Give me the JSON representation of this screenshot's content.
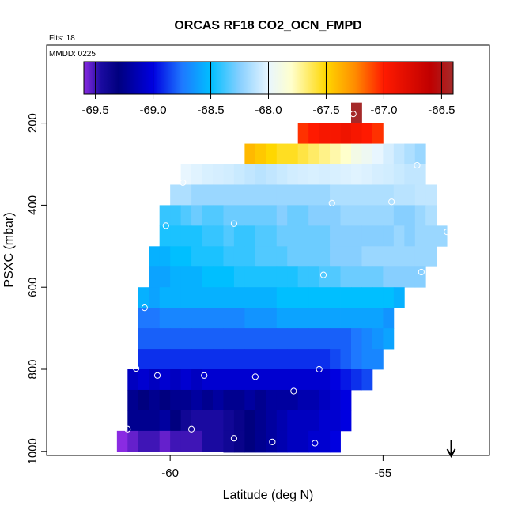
{
  "chart_data": {
    "type": "heatmap",
    "title": "ORCAS RF18 CO2_OCN_FMPD",
    "flights_note": "Flts: 18",
    "date_note": "MMDD: 0225",
    "xlabel": "Latitude (deg N)",
    "ylabel": "PSXC (mbar)",
    "xlim": [
      -62.9,
      -52.5
    ],
    "ylim": [
      1010,
      10
    ],
    "x_ticks": [
      -60,
      -55
    ],
    "x_tick_labels": [
      "-60",
      "-55"
    ],
    "y_ticks": [
      200,
      400,
      600,
      800,
      1000
    ],
    "y_tick_labels": [
      "200",
      "400",
      "600",
      "800",
      "1000"
    ],
    "colorbar": {
      "range": [
        -69.6,
        -66.4
      ],
      "ticks": [
        -69.5,
        -69.0,
        -68.5,
        -68.0,
        -67.5,
        -67.0,
        -66.5
      ],
      "tick_labels": [
        "-69.5",
        "-69.0",
        "-68.5",
        "-68.0",
        "-67.5",
        "-67.0",
        "-66.5"
      ],
      "stops": [
        {
          "v": -69.6,
          "c": "#8a2be2"
        },
        {
          "v": -69.45,
          "c": "#1a0aa0"
        },
        {
          "v": -69.3,
          "c": "#00007f"
        },
        {
          "v": -69.0,
          "c": "#0000e0"
        },
        {
          "v": -68.75,
          "c": "#1e78ff"
        },
        {
          "v": -68.5,
          "c": "#00bfff"
        },
        {
          "v": -68.25,
          "c": "#87cfff"
        },
        {
          "v": -68.0,
          "c": "#e8f6ff"
        },
        {
          "v": -67.8,
          "c": "#ffffcc"
        },
        {
          "v": -67.5,
          "c": "#ffd700"
        },
        {
          "v": -67.25,
          "c": "#ff8c00"
        },
        {
          "v": -67.0,
          "c": "#ff1a00"
        },
        {
          "v": -66.6,
          "c": "#c00000"
        },
        {
          "v": -66.4,
          "c": "#a52a2a"
        }
      ]
    },
    "pressure_bin_mbar": 50,
    "cells": [
      {
        "p": 175,
        "x0": -55.75,
        "x1": -55.5,
        "values": [
          -66.4
        ]
      },
      {
        "p": 225,
        "x0": -57.0,
        "x1": -55.0,
        "values": [
          -67.05,
          -67.0,
          -66.95,
          -66.95,
          -66.9,
          -66.95,
          -67.0,
          -67.05
        ]
      },
      {
        "p": 275,
        "x0": -58.25,
        "x1": -54.0,
        "values": [
          -67.4,
          -67.45,
          -67.5,
          -67.55,
          -67.55,
          -67.6,
          -67.65,
          -67.7,
          -67.75,
          -67.8,
          -67.9,
          -67.95,
          -68.0,
          -68.05,
          -68.1,
          -68.15,
          -68.2
        ]
      },
      {
        "p": 325,
        "x0": -59.75,
        "x1": -54.0,
        "values": [
          -68.0,
          -68.02,
          -68.04,
          -68.05,
          -68.06,
          -68.08,
          -68.1,
          -68.12,
          -68.1,
          -68.08,
          -68.06,
          -68.05,
          -68.04,
          -68.05,
          -68.04,
          -68.03,
          -68.02,
          -68.03,
          -68.05,
          -68.06,
          -68.08,
          -68.1,
          -68.1
        ]
      },
      {
        "p": 375,
        "x0": -60.0,
        "x1": -53.75,
        "values": [
          -68.15,
          -68.15,
          -68.2,
          -68.2,
          -68.2,
          -68.2,
          -68.2,
          -68.2,
          -68.2,
          -68.2,
          -68.2,
          -68.2,
          -68.2,
          -68.2,
          -68.2,
          -68.15,
          -68.15,
          -68.15,
          -68.15,
          -68.15,
          -68.15,
          -68.12,
          -68.12,
          -68.1,
          -68.1
        ]
      },
      {
        "p": 425,
        "x0": -60.25,
        "x1": -53.75,
        "values": [
          -68.4,
          -68.4,
          -68.35,
          -68.3,
          -68.35,
          -68.35,
          -68.3,
          -68.3,
          -68.3,
          -68.3,
          -68.3,
          -68.25,
          -68.3,
          -68.3,
          -68.25,
          -68.25,
          -68.25,
          -68.2,
          -68.2,
          -68.2,
          -68.2,
          -68.2,
          -68.25,
          -68.25,
          -68.2,
          -68.15
        ]
      },
      {
        "p": 475,
        "x0": -60.25,
        "x1": -53.5,
        "values": [
          -68.45,
          -68.45,
          -68.45,
          -68.45,
          -68.4,
          -68.4,
          -68.35,
          -68.4,
          -68.4,
          -68.35,
          -68.35,
          -68.3,
          -68.3,
          -68.3,
          -68.3,
          -68.3,
          -68.25,
          -68.25,
          -68.25,
          -68.25,
          -68.25,
          -68.25,
          -68.2,
          -68.25,
          -68.2,
          -68.2,
          -68.2
        ]
      },
      {
        "p": 525,
        "x0": -60.5,
        "x1": -53.75,
        "values": [
          -68.55,
          -68.55,
          -68.5,
          -68.5,
          -68.45,
          -68.45,
          -68.45,
          -68.4,
          -68.4,
          -68.4,
          -68.35,
          -68.35,
          -68.35,
          -68.3,
          -68.3,
          -68.3,
          -68.3,
          -68.25,
          -68.25,
          -68.25,
          -68.2,
          -68.2,
          -68.2,
          -68.2,
          -68.2,
          -68.2,
          -68.2
        ]
      },
      {
        "p": 575,
        "x0": -60.5,
        "x1": -54.0,
        "values": [
          -68.6,
          -68.6,
          -68.55,
          -68.55,
          -68.55,
          -68.5,
          -68.5,
          -68.5,
          -68.45,
          -68.45,
          -68.45,
          -68.45,
          -68.45,
          -68.45,
          -68.4,
          -68.4,
          -68.35,
          -68.35,
          -68.3,
          -68.3,
          -68.3,
          -68.3,
          -68.25,
          -68.25,
          -68.25,
          -68.25
        ]
      },
      {
        "p": 625,
        "x0": -60.75,
        "x1": -54.5,
        "values": [
          -68.55,
          -68.6,
          -68.55,
          -68.55,
          -68.55,
          -68.55,
          -68.55,
          -68.55,
          -68.55,
          -68.55,
          -68.55,
          -68.55,
          -68.55,
          -68.5,
          -68.5,
          -68.5,
          -68.5,
          -68.5,
          -68.5,
          -68.5,
          -68.5,
          -68.5,
          -68.5,
          -68.5,
          -68.55
        ]
      },
      {
        "p": 675,
        "x0": -60.75,
        "x1": -54.75,
        "values": [
          -68.75,
          -68.75,
          -68.7,
          -68.7,
          -68.7,
          -68.7,
          -68.7,
          -68.7,
          -68.7,
          -68.7,
          -68.65,
          -68.65,
          -68.65,
          -68.6,
          -68.6,
          -68.6,
          -68.6,
          -68.6,
          -68.6,
          -68.6,
          -68.6,
          -68.6,
          -68.6,
          -68.65
        ]
      },
      {
        "p": 725,
        "x0": -60.75,
        "x1": -54.75,
        "values": [
          -68.8,
          -68.8,
          -68.8,
          -68.8,
          -68.8,
          -68.8,
          -68.8,
          -68.8,
          -68.8,
          -68.8,
          -68.8,
          -68.8,
          -68.8,
          -68.8,
          -68.8,
          -68.8,
          -68.8,
          -68.8,
          -68.8,
          -68.8,
          -68.75,
          -68.7,
          -68.65,
          -68.6
        ]
      },
      {
        "p": 775,
        "x0": -60.75,
        "x1": -55.0,
        "values": [
          -68.9,
          -68.9,
          -68.9,
          -68.9,
          -68.9,
          -68.9,
          -68.9,
          -68.9,
          -68.9,
          -68.9,
          -68.9,
          -68.9,
          -68.9,
          -68.9,
          -68.9,
          -68.9,
          -68.9,
          -68.9,
          -68.85,
          -68.8,
          -68.75,
          -68.7,
          -68.7
        ]
      },
      {
        "p": 825,
        "x0": -61.0,
        "x1": -55.25,
        "values": [
          -69.1,
          -69.05,
          -69.1,
          -69.05,
          -69.1,
          -69.05,
          -69.1,
          -69.05,
          -69.05,
          -69.05,
          -69.05,
          -69.05,
          -69.05,
          -69.05,
          -69.05,
          -69.05,
          -69.05,
          -69.05,
          -69.05,
          -69.0,
          -68.95,
          -68.9,
          -68.85
        ]
      },
      {
        "p": 875,
        "x0": -61.0,
        "x1": -55.75,
        "values": [
          -69.25,
          -69.3,
          -69.25,
          -69.3,
          -69.25,
          -69.25,
          -69.2,
          -69.25,
          -69.2,
          -69.25,
          -69.25,
          -69.2,
          -69.25,
          -69.2,
          -69.2,
          -69.2,
          -69.15,
          -69.15,
          -69.1,
          -69.05,
          -69.0
        ]
      },
      {
        "p": 925,
        "x0": -61.0,
        "x1": -55.75,
        "values": [
          -69.25,
          -69.25,
          -69.25,
          -69.2,
          -69.3,
          -69.4,
          -69.45,
          -69.45,
          -69.45,
          -69.4,
          -69.35,
          -69.3,
          -69.25,
          -69.2,
          -69.15,
          -69.1,
          -69.1,
          -69.1,
          -69.05,
          -69.05,
          -69.0
        ]
      },
      {
        "p": 975,
        "x0": -61.25,
        "x1": -56.0,
        "values": [
          -69.6,
          -69.55,
          -69.5,
          -69.5,
          -69.55,
          -69.5,
          -69.5,
          -69.5,
          -69.45,
          -69.45,
          -69.4,
          -69.35,
          -69.3,
          -69.25,
          -69.2,
          -69.15,
          -69.1,
          -69.1,
          -69.05,
          -69.05,
          -69.0
        ]
      },
      {
        "p": 1025,
        "x0": -58.75,
        "x1": -56.0,
        "values": [
          -69.35,
          -69.3,
          -69.25,
          -69.2,
          -69.15,
          -69.1,
          -69.05,
          -69.05,
          -69.0,
          -69.0,
          -69.0
        ]
      }
    ],
    "points": [
      {
        "x": -55.7,
        "p": 178
      },
      {
        "x": -59.7,
        "p": 345
      },
      {
        "x": -54.2,
        "p": 303
      },
      {
        "x": -56.2,
        "p": 395
      },
      {
        "x": -54.8,
        "p": 392
      },
      {
        "x": -60.1,
        "p": 450
      },
      {
        "x": -58.5,
        "p": 445
      },
      {
        "x": -53.5,
        "p": 465
      },
      {
        "x": -56.4,
        "p": 570
      },
      {
        "x": -54.1,
        "p": 563
      },
      {
        "x": -60.6,
        "p": 650
      },
      {
        "x": -60.8,
        "p": 798
      },
      {
        "x": -60.3,
        "p": 815
      },
      {
        "x": -59.2,
        "p": 815
      },
      {
        "x": -58.0,
        "p": 818
      },
      {
        "x": -56.5,
        "p": 800
      },
      {
        "x": -57.1,
        "p": 853
      },
      {
        "x": -61.0,
        "p": 946
      },
      {
        "x": -59.5,
        "p": 946
      },
      {
        "x": -58.5,
        "p": 968
      },
      {
        "x": -57.6,
        "p": 977
      },
      {
        "x": -56.6,
        "p": 980
      }
    ],
    "arrow": {
      "x": -53.4,
      "direction": "down"
    }
  }
}
